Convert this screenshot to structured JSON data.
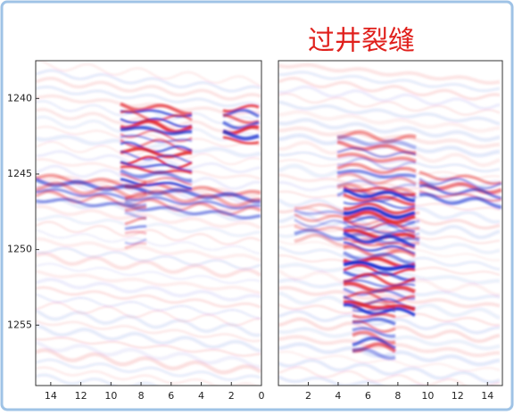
{
  "chart_data": [
    {
      "type": "seismic",
      "xlim": [
        15,
        0
      ],
      "xticks": [
        14,
        12,
        10,
        8,
        6,
        4,
        2,
        0
      ],
      "ylim": [
        1237.5,
        1259
      ],
      "yticks": [
        1240,
        1245,
        1250,
        1255
      ]
    },
    {
      "type": "seismic",
      "annotation": "过井裂缝",
      "xlim": [
        0,
        15
      ],
      "xticks": [
        2,
        4,
        6,
        8,
        10,
        12,
        14
      ],
      "ylim": [
        1237.5,
        1259
      ]
    }
  ]
}
